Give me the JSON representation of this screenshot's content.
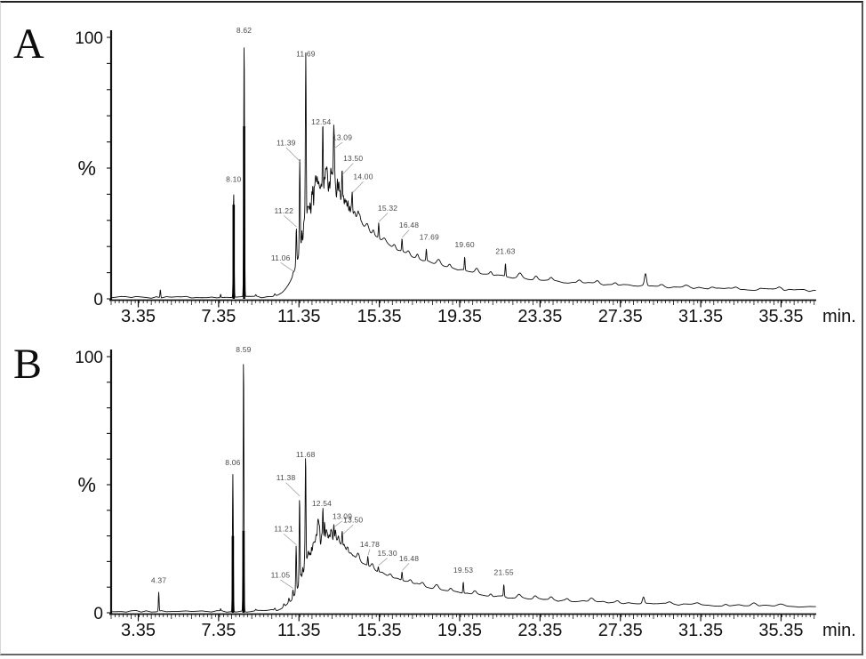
{
  "figure": {
    "kind": "total ion chromatograms, two stacked panels"
  },
  "chart_data": {
    "type": "line",
    "title": "",
    "xlabel": "min.",
    "ylabel": "%",
    "xlim": [
      2.0,
      37.1
    ],
    "ylim": [
      0,
      100
    ],
    "x_ticks": [
      3.35,
      7.35,
      11.35,
      15.35,
      19.35,
      23.35,
      27.35,
      31.35,
      35.35
    ],
    "x_tick_labels": [
      "3.35",
      "7.35",
      "11.35",
      "15.35",
      "19.35",
      "23.35",
      "27.35",
      "31.35",
      "35.35"
    ],
    "y_tick_top_label": "100",
    "y_tick_bottom_label": "0",
    "y_axis_symbol": "%",
    "grid": false,
    "legend": "none",
    "panels": [
      {
        "label": "A",
        "noise_seed": 3,
        "hump": {
          "amplitude": 38,
          "rise_center": 11.45,
          "rise_width": 0.33,
          "decay_start": 13.3,
          "decay": [
            [
              0.58,
              2.4
            ],
            [
              0.3,
              7.5
            ],
            [
              0.12,
              30
            ]
          ]
        },
        "texture": {
          "from": 11.42,
          "to": 14.55,
          "step": 0.07,
          "max_amp": 13,
          "center": 12.6,
          "width": 1.15,
          "seed": 7
        },
        "peaks": [
          {
            "t": 4.45,
            "h": 3.5,
            "sigma": 0.018
          },
          {
            "t": 7.45,
            "h": 1.8,
            "sigma": 0.015
          },
          {
            "t": 8.1,
            "h": 41,
            "label": "8.10",
            "dark_to": 36,
            "ly": 3
          },
          {
            "t": 8.62,
            "h": 99,
            "label": "8.62",
            "dark_to": 66,
            "ly": 3
          },
          {
            "t": 11.06,
            "h": 10,
            "label": "11.06",
            "lx": -0.62,
            "ly": 4,
            "leader": true
          },
          {
            "t": 11.22,
            "h": 27,
            "label": "11.22",
            "lx": -0.62,
            "ly": 5,
            "leader": true
          },
          {
            "t": 11.39,
            "h": 52,
            "label": "11.39",
            "lx": -0.68,
            "ly": 6,
            "leader": true
          },
          {
            "t": 11.69,
            "h": 89,
            "label": "11.69",
            "ly": 3
          },
          {
            "t": 12.54,
            "h": 63,
            "label": "12.54",
            "lx": -0.08,
            "ly": 3
          },
          {
            "t": 13.09,
            "h": 57,
            "label": "13.09",
            "lx": 0.42,
            "ly": 3,
            "leader": true
          },
          {
            "t": 13.5,
            "h": 47,
            "label": "13.50",
            "lx": 0.55,
            "ly": 5,
            "leader": true
          },
          {
            "t": 14.0,
            "h": 40,
            "label": "14.00",
            "lx": 0.55,
            "ly": 5,
            "leader": true
          },
          {
            "t": 15.32,
            "h": 29,
            "label": "15.32",
            "lx": 0.45,
            "ly": 4,
            "leader": true
          },
          {
            "t": 16.48,
            "h": 23,
            "label": "16.48",
            "lx": 0.35,
            "ly": 3.5,
            "leader": true
          },
          {
            "t": 17.69,
            "h": 19,
            "label": "17.69",
            "lx": 0.15,
            "ly": 3
          },
          {
            "t": 19.6,
            "h": 16,
            "label": "19.60",
            "ly": 3
          },
          {
            "t": 21.63,
            "h": 13.5,
            "label": "21.63",
            "ly": 3
          }
        ],
        "minor_bumps": [
          [
            9.2,
            0.6,
            0.02
          ],
          [
            10.15,
            0.8,
            0.03
          ],
          [
            14.35,
            3,
            0.06
          ],
          [
            14.75,
            2.2,
            0.07
          ],
          [
            15.05,
            2,
            0.05
          ],
          [
            15.6,
            1.5,
            0.08
          ],
          [
            16.1,
            1.5,
            0.06
          ],
          [
            16.8,
            1.5,
            0.07
          ],
          [
            17.25,
            1.5,
            0.05
          ],
          [
            18.3,
            2.2,
            0.09
          ],
          [
            18.85,
            1.2,
            0.06
          ],
          [
            20.2,
            1.8,
            0.08
          ],
          [
            20.9,
            1.2,
            0.06
          ],
          [
            22.35,
            1.8,
            0.09
          ],
          [
            23.15,
            1.5,
            0.08
          ],
          [
            23.9,
            1.0,
            0.07
          ],
          [
            25.3,
            1.4,
            0.1
          ],
          [
            26.2,
            0.9,
            0.08
          ],
          [
            27.1,
            0.8,
            0.08
          ],
          [
            28.6,
            4.5,
            0.05
          ],
          [
            29.4,
            0.8,
            0.1
          ],
          [
            30.6,
            0.9,
            0.12
          ],
          [
            31.9,
            0.6,
            0.1
          ],
          [
            33.1,
            0.9,
            0.12
          ],
          [
            34.3,
            0.6,
            0.1
          ],
          [
            35.3,
            0.8,
            0.12
          ]
        ]
      },
      {
        "label": "B",
        "noise_seed": 11,
        "hump": {
          "amplitude": 27,
          "rise_center": 11.5,
          "rise_width": 0.33,
          "decay_start": 13.2,
          "decay": [
            [
              0.58,
              2.4
            ],
            [
              0.3,
              7.5
            ],
            [
              0.12,
              30
            ]
          ]
        },
        "texture": {
          "from": 11.45,
          "to": 14.5,
          "step": 0.07,
          "max_amp": 9,
          "center": 12.4,
          "width": 1.1,
          "seed": 19
        },
        "peaks": [
          {
            "t": 4.37,
            "h": 8,
            "label": "4.37",
            "ly": 3,
            "sigma": 0.018
          },
          {
            "t": 7.45,
            "h": 1.5,
            "sigma": 0.015
          },
          {
            "t": 8.06,
            "h": 54,
            "label": "8.06",
            "dark_to": 30,
            "ly": 3
          },
          {
            "t": 8.59,
            "h": 100,
            "label": "8.59",
            "dark_to": 32,
            "ly": 3
          },
          {
            "t": 11.05,
            "h": 9,
            "label": "11.05",
            "lx": -0.62,
            "ly": 4,
            "leader": true
          },
          {
            "t": 11.21,
            "h": 26,
            "label": "11.21",
            "lx": -0.62,
            "ly": 5,
            "leader": true
          },
          {
            "t": 11.38,
            "h": 45,
            "label": "11.38",
            "lx": -0.68,
            "ly": 6,
            "leader": true
          },
          {
            "t": 11.68,
            "h": 57,
            "label": "11.68",
            "ly": 3
          },
          {
            "t": 12.54,
            "h": 38,
            "label": "12.54",
            "lx": -0.05,
            "ly": 3
          },
          {
            "t": 13.09,
            "h": 33,
            "label": "13.09",
            "lx": 0.42,
            "ly": 3,
            "leader": true
          },
          {
            "t": 13.5,
            "h": 30,
            "label": "13.50",
            "lx": 0.55,
            "ly": 4.5,
            "leader": true
          },
          {
            "t": 14.78,
            "h": 22,
            "label": "14.78",
            "lx": 0.1,
            "ly": 3,
            "leader": true
          },
          {
            "t": 15.3,
            "h": 18,
            "label": "15.30",
            "lx": 0.45,
            "ly": 3.5,
            "leader": true
          },
          {
            "t": 16.48,
            "h": 16,
            "label": "16.48",
            "lx": 0.35,
            "ly": 3.5,
            "leader": true
          },
          {
            "t": 19.53,
            "h": 12,
            "label": "19.53",
            "ly": 3
          },
          {
            "t": 21.55,
            "h": 11,
            "label": "21.55",
            "ly": 3
          }
        ],
        "minor_bumps": [
          [
            9.2,
            0.5,
            0.02
          ],
          [
            10.15,
            0.8,
            0.03
          ],
          [
            10.6,
            1.2,
            0.03
          ],
          [
            10.85,
            1.8,
            0.025
          ],
          [
            14.3,
            2.5,
            0.06
          ],
          [
            15.0,
            1.8,
            0.06
          ],
          [
            15.9,
            1.2,
            0.07
          ],
          [
            16.9,
            1.2,
            0.07
          ],
          [
            17.5,
            1.5,
            0.08
          ],
          [
            18.2,
            1.6,
            0.09
          ],
          [
            18.9,
            1.0,
            0.06
          ],
          [
            20.1,
            1.4,
            0.08
          ],
          [
            20.9,
            1.0,
            0.06
          ],
          [
            22.3,
            1.5,
            0.09
          ],
          [
            23.1,
            1.2,
            0.08
          ],
          [
            23.9,
            1.0,
            0.07
          ],
          [
            24.7,
            0.9,
            0.08
          ],
          [
            25.9,
            1.2,
            0.1
          ],
          [
            27.2,
            0.8,
            0.08
          ],
          [
            28.5,
            2.5,
            0.05
          ],
          [
            29.8,
            0.8,
            0.1
          ],
          [
            31.2,
            0.9,
            0.12
          ],
          [
            32.6,
            0.7,
            0.1
          ],
          [
            34.0,
            0.8,
            0.12
          ],
          [
            35.3,
            1.0,
            0.15
          ]
        ]
      }
    ]
  }
}
